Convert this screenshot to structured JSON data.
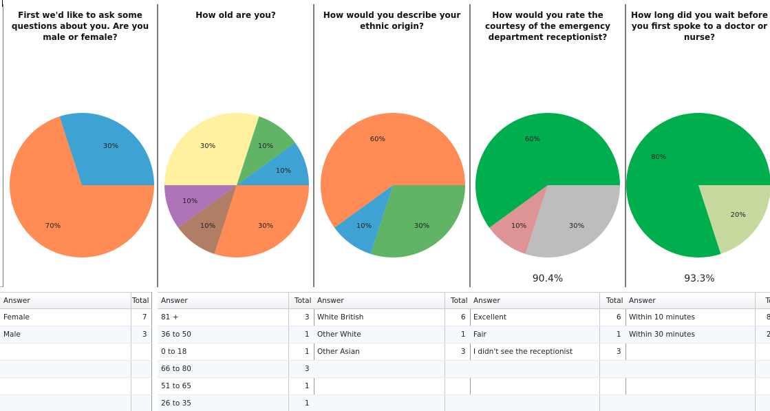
{
  "chart_data": [
    {
      "type": "pie",
      "title": "First we'd like to ask some questions about you. Are you male or female?",
      "slices": [
        {
          "label": "70%",
          "value": 70,
          "color": "#FF8C55"
        },
        {
          "label": "30%",
          "value": 30,
          "color": "#3EA3D2"
        }
      ],
      "table": {
        "columns": [
          "Answer",
          "Total"
        ],
        "rows": [
          [
            "Female",
            "7"
          ],
          [
            "Male",
            "3"
          ],
          [
            "",
            ""
          ],
          [
            "",
            ""
          ],
          [
            "",
            ""
          ],
          [
            "",
            ""
          ]
        ]
      }
    },
    {
      "type": "pie",
      "title": "How old are you?",
      "slices": [
        {
          "label": "30%",
          "value": 30,
          "color": "#FF8C55"
        },
        {
          "label": "10%",
          "value": 10,
          "color": "#B07E64"
        },
        {
          "label": "10%",
          "value": 10,
          "color": "#AE74B8"
        },
        {
          "label": "30%",
          "value": 30,
          "color": "#FFF1A0"
        },
        {
          "label": "10%",
          "value": 10,
          "color": "#61B465"
        },
        {
          "label": "10%",
          "value": 10,
          "color": "#3EA3D2"
        }
      ],
      "table": {
        "columns": [
          "Answer",
          "Total"
        ],
        "rows": [
          [
            "81 +",
            "3"
          ],
          [
            "36 to 50",
            "1"
          ],
          [
            "0 to 18",
            "1"
          ],
          [
            "66 to 80",
            "3"
          ],
          [
            "51 to 65",
            "1"
          ],
          [
            "26 to 35",
            "1"
          ]
        ]
      }
    },
    {
      "type": "pie",
      "title": "How would you describe your ethnic origin?",
      "slices": [
        {
          "label": "30%",
          "value": 30,
          "color": "#61B465"
        },
        {
          "label": "10%",
          "value": 10,
          "color": "#3EA3D2"
        },
        {
          "label": "60%",
          "value": 60,
          "color": "#FF8C55"
        }
      ],
      "table": {
        "columns": [
          "Answer",
          "Total"
        ],
        "rows": [
          [
            "White British",
            "6"
          ],
          [
            "Other White",
            "1"
          ],
          [
            "Other Asian",
            "3"
          ],
          [
            "",
            ""
          ],
          [
            "",
            ""
          ],
          [
            "",
            ""
          ]
        ]
      }
    },
    {
      "type": "pie",
      "title": "How would you rate the courtesy of the emergency department receptionist?",
      "score": "90.4%",
      "slices": [
        {
          "label": "30%",
          "value": 30,
          "color": "#BDBDBD"
        },
        {
          "label": "10%",
          "value": 10,
          "color": "#DE9494"
        },
        {
          "label": "60%",
          "value": 60,
          "color": "#00AE4D"
        }
      ],
      "table": {
        "columns": [
          "Answer",
          "Total"
        ],
        "rows": [
          [
            "Excellent",
            "6"
          ],
          [
            "Fair",
            "1"
          ],
          [
            "I didn't see the receptionist",
            "3"
          ],
          [
            "",
            ""
          ],
          [
            "",
            ""
          ],
          [
            "",
            ""
          ]
        ]
      }
    },
    {
      "type": "pie",
      "title": "How long did you wait before you first spoke to a doctor or nurse?",
      "score": "93.3%",
      "slices": [
        {
          "label": "20%",
          "value": 20,
          "color": "#C6D99E"
        },
        {
          "label": "80%",
          "value": 80,
          "color": "#00AE4D"
        }
      ],
      "table": {
        "columns": [
          "Answer",
          "To"
        ],
        "rows": [
          [
            "Within 10 minutes",
            "8"
          ],
          [
            "Within 30 minutes",
            "2"
          ],
          [
            "",
            ""
          ],
          [
            "",
            ""
          ],
          [
            "",
            ""
          ],
          [
            "",
            ""
          ]
        ]
      }
    }
  ]
}
